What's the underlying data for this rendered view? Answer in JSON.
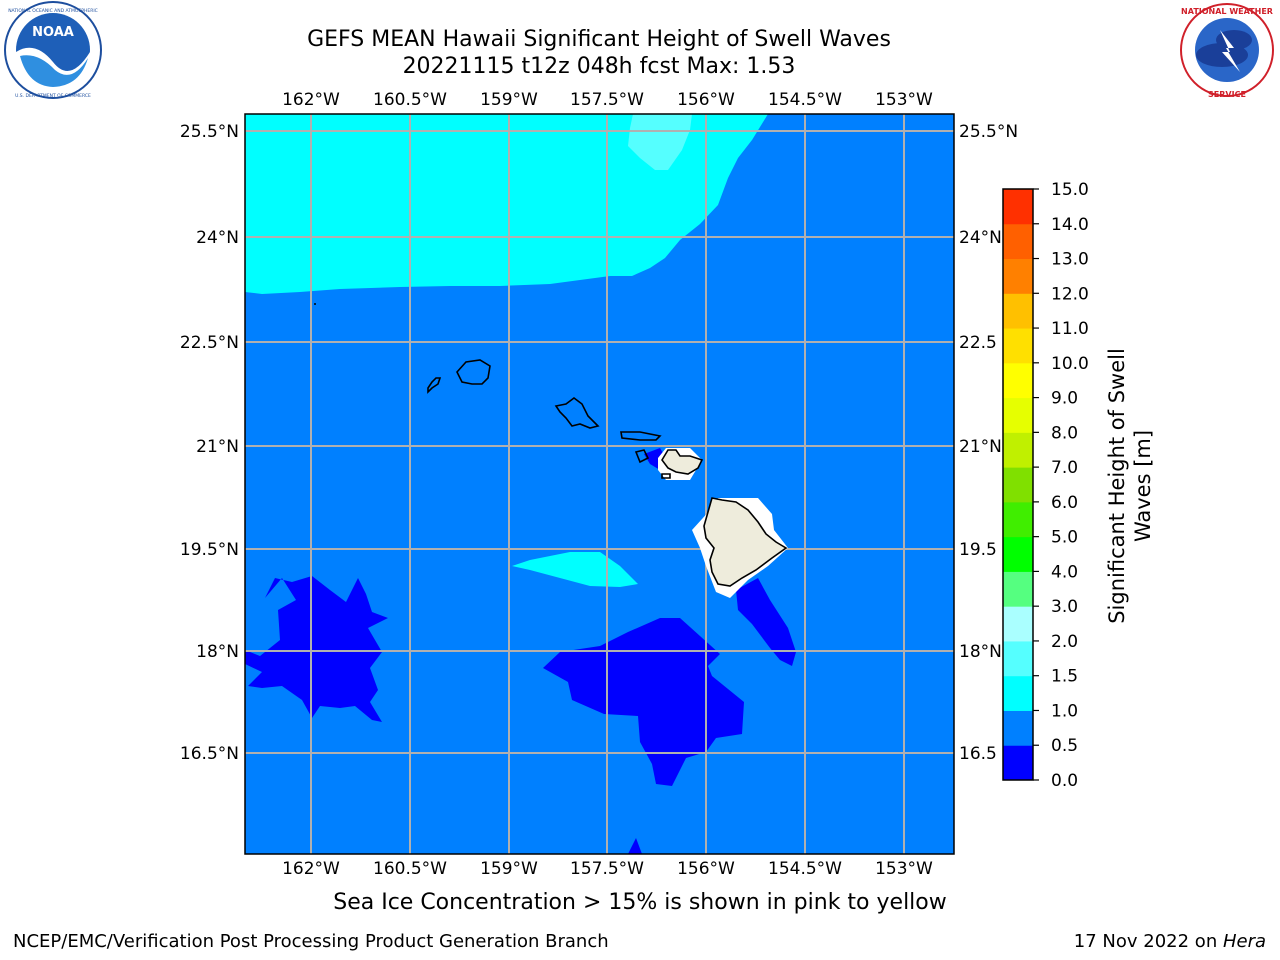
{
  "header": {
    "title_line1": "GEFS MEAN Hawaii Significant Height of Swell Waves",
    "title_line2": "20221115 t12z 048h fcst   Max: 1.53"
  },
  "logos": {
    "left": {
      "name": "NOAA",
      "text": "NOAA",
      "ring_text": "NATIONAL OCEANIC AND ATMOSPHERIC ADMINISTRATION · U.S. DEPARTMENT OF COMMERCE"
    },
    "right": {
      "name": "National Weather Service",
      "ring_text": "NATIONAL WEATHER SERVICE"
    }
  },
  "map": {
    "lon_ticks": [
      "162°W",
      "160.5°W",
      "159°W",
      "157.5°W",
      "156°W",
      "154.5°W",
      "153°W"
    ],
    "lat_ticks": [
      "25.5°N",
      "24°N",
      "22.5°N",
      "21°N",
      "19.5°N",
      "18°N",
      "16.5°N"
    ],
    "lat_ticks_right": [
      "25.5°N",
      "24°N",
      "22.5",
      "21°N",
      "19.5",
      "18°N",
      "16.5"
    ],
    "colors": {
      "level_0_0p5": "#0000ff",
      "level_0p5_1": "#0080ff",
      "level_1_1p5": "#00ffff",
      "level_1p5_2": "#55ffff",
      "land": "#eeecdc",
      "grid": "#b0b0b0"
    }
  },
  "colorbar": {
    "label": "Significant Height of Swell Waves [m]",
    "ticks": [
      "15.0",
      "14.0",
      "13.0",
      "12.0",
      "11.0",
      "10.0",
      "9.0",
      "8.0",
      "7.0",
      "6.0",
      "5.0",
      "4.0",
      "3.0",
      "2.0",
      "1.5",
      "1.0",
      "0.5",
      "0.0"
    ],
    "colors": [
      "#0000ff",
      "#0080ff",
      "#00ffff",
      "#55ffff",
      "#aaffff",
      "#55ff80",
      "#00ff00",
      "#40ee00",
      "#80e000",
      "#c0f000",
      "#e6ff00",
      "#ffff00",
      "#ffe000",
      "#ffc000",
      "#ff8000",
      "#ff6000",
      "#ff3000"
    ]
  },
  "footer": {
    "note": "Sea Ice Concentration > 15% is shown in pink to yellow",
    "left": "NCEP/EMC/Verification Post Processing Product Generation Branch",
    "right_date": "17 Nov 2022 on ",
    "right_host": "Hera"
  }
}
